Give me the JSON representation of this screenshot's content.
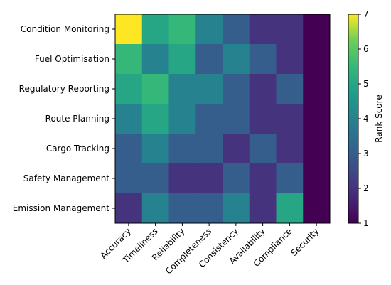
{
  "chart_data": {
    "type": "heatmap",
    "title": "",
    "xlabel": "",
    "ylabel": "",
    "x_categories": [
      "Accuracy",
      "Timeliness",
      "Reliability",
      "Completeness",
      "Consistency",
      "Availability",
      "Compliance",
      "Security"
    ],
    "y_categories": [
      "Condition Monitoring",
      "Fuel Optimisation",
      "Regulatory Reporting",
      "Route Planning",
      "Cargo Tracking",
      "Safety Management",
      "Emission Management"
    ],
    "values": [
      [
        7,
        5,
        5.5,
        4,
        3,
        2,
        2,
        1
      ],
      [
        5.5,
        4,
        5,
        3,
        4,
        3,
        2,
        1
      ],
      [
        5,
        5.5,
        4,
        4,
        3,
        2,
        3,
        1
      ],
      [
        4,
        5,
        4,
        3,
        3,
        2,
        2,
        1
      ],
      [
        3,
        4,
        3,
        3,
        2,
        3,
        2,
        1
      ],
      [
        3,
        3,
        2,
        2,
        3,
        2,
        3,
        1
      ],
      [
        2,
        4,
        3,
        3,
        4,
        2,
        5,
        1
      ]
    ],
    "colorbar": {
      "label": "Rank Score",
      "min": 1,
      "max": 7,
      "ticks": [
        "1",
        "2",
        "3",
        "4",
        "5",
        "6",
        "7"
      ],
      "colormap": "viridis"
    },
    "grid": false,
    "legend": "colorbar-right"
  }
}
